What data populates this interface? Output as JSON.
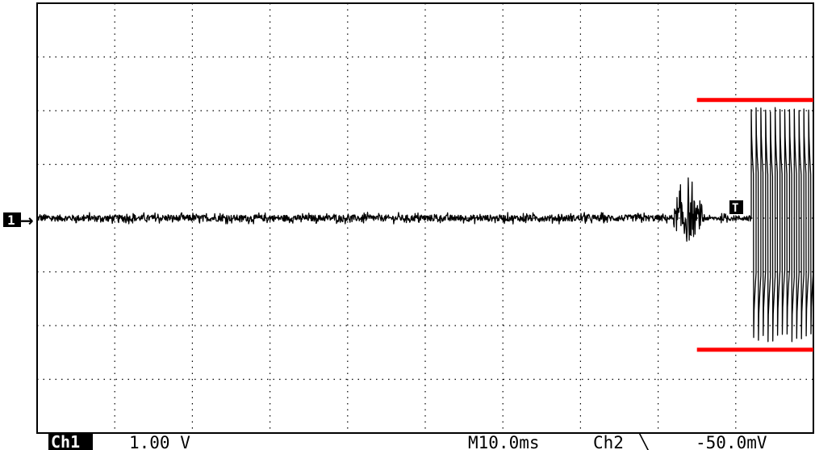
{
  "chart_data": {
    "type": "line",
    "grid": true,
    "grid_style": "dotted",
    "divisions": {
      "x": 10,
      "y": 8
    },
    "channel_marker": "1",
    "trigger_marker": "T",
    "readout": {
      "channel_badge": "Ch1",
      "volts_per_div": "1.00 V",
      "timebase": "M10.0ms",
      "trigger_source": "Ch2",
      "trigger_slope_symbol": "╲",
      "trigger_level": "-50.0mV"
    },
    "trace_color": "#000000",
    "annotation_color": "#ff0000",
    "xlim": [
      0,
      10
    ],
    "ylim": [
      -4,
      4
    ],
    "series": [
      {
        "segments": [
          {
            "kind": "noise",
            "x_range": [
              0,
              8.2
            ],
            "amplitude_div": 0.06
          },
          {
            "kind": "burst",
            "x_range": [
              8.2,
              8.7
            ],
            "amplitude_div": 0.45
          },
          {
            "kind": "noise",
            "x_range": [
              8.7,
              9.2
            ],
            "amplitude_div": 0.05
          },
          {
            "kind": "square_wave",
            "x_range": [
              9.2,
              10.0
            ],
            "high_div": 2.1,
            "low_div": -2.3,
            "cycles": 13
          }
        ]
      }
    ],
    "annotations": [
      {
        "kind": "hline",
        "y": 2.2,
        "x_range": [
          8.5,
          10.0
        ],
        "color": "#ff0000"
      },
      {
        "kind": "hline",
        "y": -2.45,
        "x_range": [
          8.5,
          10.0
        ],
        "color": "#ff0000"
      }
    ]
  }
}
